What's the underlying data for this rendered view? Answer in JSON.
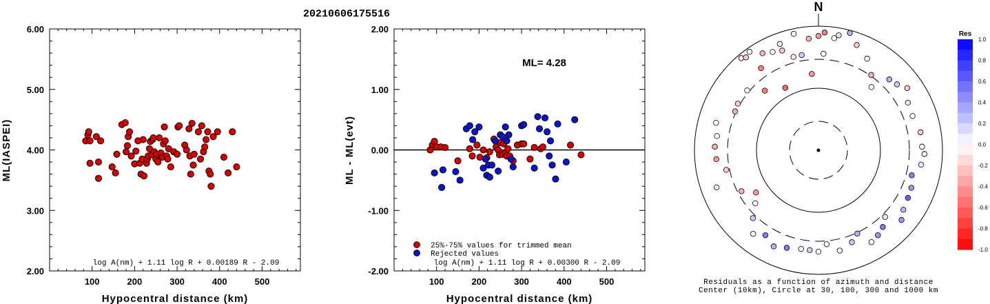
{
  "colors": {
    "red": "#d40000",
    "blue": "#0a14c8",
    "frame": "#000000"
  },
  "figure_title": "20210606175516",
  "chart_data": [
    {
      "type": "scatter",
      "id": "left",
      "xlabel": "Hypocentral distance (km)",
      "ylabel": "ML(IASPEI)",
      "xlim": [
        0,
        590
      ],
      "ylim": [
        2.0,
        6.0
      ],
      "xticks": [
        100,
        200,
        300,
        400,
        500
      ],
      "yticks": [
        "2.00",
        "3.00",
        "4.00",
        "5.00",
        "6.00"
      ],
      "formula": "log A(nm) + 1.11 log R + 0.00189 R - 2.09",
      "series": [
        {
          "color": "red",
          "points": [
            [
              85,
              4.15
            ],
            [
              90,
              4.25
            ],
            [
              92,
              4.3
            ],
            [
              95,
              3.78
            ],
            [
              95,
              4.15
            ],
            [
              110,
              4.22
            ],
            [
              115,
              3.53
            ],
            [
              115,
              3.8
            ],
            [
              120,
              4.15
            ],
            [
              147,
              3.72
            ],
            [
              155,
              3.62
            ],
            [
              158,
              3.93
            ],
            [
              170,
              4.42
            ],
            [
              178,
              4.45
            ],
            [
              180,
              3.97
            ],
            [
              183,
              4.07
            ],
            [
              185,
              4.22
            ],
            [
              188,
              4.3
            ],
            [
              192,
              3.9
            ],
            [
              200,
              3.77
            ],
            [
              203,
              3.98
            ],
            [
              208,
              4.15
            ],
            [
              212,
              3.78
            ],
            [
              215,
              3.6
            ],
            [
              218,
              3.85
            ],
            [
              220,
              4.17
            ],
            [
              222,
              3.57
            ],
            [
              228,
              3.78
            ],
            [
              230,
              3.85
            ],
            [
              232,
              3.9
            ],
            [
              235,
              4.02
            ],
            [
              237,
              4.14
            ],
            [
              240,
              3.92
            ],
            [
              242,
              4.17
            ],
            [
              244,
              4.2
            ],
            [
              246,
              3.97
            ],
            [
              250,
              3.85
            ],
            [
              252,
              3.93
            ],
            [
              255,
              3.8
            ],
            [
              258,
              4.2
            ],
            [
              262,
              3.95
            ],
            [
              265,
              3.88
            ],
            [
              268,
              4.1
            ],
            [
              270,
              4.38
            ],
            [
              272,
              4.15
            ],
            [
              275,
              3.9
            ],
            [
              278,
              3.85
            ],
            [
              280,
              4.02
            ],
            [
              285,
              3.72
            ],
            [
              292,
              3.97
            ],
            [
              300,
              3.93
            ],
            [
              302,
              4.38
            ],
            [
              305,
              4.4
            ],
            [
              318,
              4.08
            ],
            [
              322,
              4.0
            ],
            [
              328,
              4.35
            ],
            [
              330,
              3.9
            ],
            [
              332,
              3.6
            ],
            [
              335,
              4.44
            ],
            [
              338,
              3.75
            ],
            [
              340,
              3.93
            ],
            [
              350,
              4.3
            ],
            [
              355,
              3.85
            ],
            [
              358,
              4.4
            ],
            [
              362,
              3.97
            ],
            [
              365,
              4.05
            ],
            [
              368,
              4.17
            ],
            [
              372,
              4.3
            ],
            [
              375,
              3.65
            ],
            [
              378,
              3.6
            ],
            [
              380,
              3.4
            ],
            [
              385,
              4.22
            ],
            [
              395,
              4.3
            ],
            [
              410,
              3.88
            ],
            [
              420,
              3.62
            ],
            [
              430,
              4.3
            ],
            [
              440,
              3.72
            ]
          ]
        }
      ]
    },
    {
      "type": "scatter",
      "id": "middle",
      "xlabel": "Hypocentral distance (km)",
      "ylabel": "ML - ML(evt)",
      "xlim": [
        0,
        590
      ],
      "ylim": [
        -2.0,
        2.0
      ],
      "xticks": [
        100,
        200,
        300,
        400,
        500
      ],
      "yticks": [
        "-2.00",
        "-1.00",
        "0.00",
        "1.00",
        "2.00"
      ],
      "reference_line": 0,
      "annotation": "ML= 4.28",
      "legend": [
        "25%-75% values for trimmed mean",
        "Rejected values"
      ],
      "formula": "log A(nm) + 1.11 log R + 0.00300 R - 2.09",
      "series": [
        {
          "color": "red",
          "name": "25%-75% values for trimmed mean",
          "points": [
            [
              85,
              0.0
            ],
            [
              90,
              0.08
            ],
            [
              95,
              0.14
            ],
            [
              100,
              0.05
            ],
            [
              110,
              0.05
            ],
            [
              120,
              0.04
            ],
            [
              150,
              -0.18
            ],
            [
              178,
              0.02
            ],
            [
              184,
              -0.1
            ],
            [
              195,
              0.08
            ],
            [
              202,
              -0.12
            ],
            [
              210,
              0.0
            ],
            [
              218,
              -0.13
            ],
            [
              225,
              -0.03
            ],
            [
              235,
              0.18
            ],
            [
              240,
              0.05
            ],
            [
              245,
              0.0
            ],
            [
              248,
              -0.08
            ],
            [
              250,
              0.12
            ],
            [
              255,
              -0.07
            ],
            [
              258,
              0.1
            ],
            [
              262,
              -0.05
            ],
            [
              265,
              -0.1
            ],
            [
              268,
              0.02
            ],
            [
              272,
              -0.1
            ],
            [
              280,
              -0.18
            ],
            [
              290,
              0.08
            ],
            [
              300,
              0.1
            ],
            [
              305,
              0.1
            ],
            [
              320,
              -0.15
            ],
            [
              330,
              0.04
            ],
            [
              345,
              0.02
            ],
            [
              350,
              0.05
            ],
            [
              415,
              0.08
            ],
            [
              440,
              -0.08
            ]
          ]
        },
        {
          "color": "blue",
          "name": "Rejected values",
          "points": [
            [
              95,
              -0.38
            ],
            [
              112,
              -0.62
            ],
            [
              115,
              -0.33
            ],
            [
              145,
              -0.36
            ],
            [
              155,
              -0.5
            ],
            [
              170,
              0.35
            ],
            [
              178,
              0.4
            ],
            [
              185,
              0.17
            ],
            [
              190,
              0.3
            ],
            [
              200,
              0.38
            ],
            [
              210,
              -0.3
            ],
            [
              215,
              -0.15
            ],
            [
              218,
              -0.42
            ],
            [
              222,
              -0.25
            ],
            [
              225,
              -0.45
            ],
            [
              230,
              -0.25
            ],
            [
              238,
              0.15
            ],
            [
              245,
              -0.35
            ],
            [
              250,
              0.25
            ],
            [
              255,
              0.22
            ],
            [
              262,
              0.38
            ],
            [
              265,
              0.15
            ],
            [
              270,
              0.25
            ],
            [
              275,
              -0.15
            ],
            [
              280,
              -0.28
            ],
            [
              300,
              0.4
            ],
            [
              305,
              0.42
            ],
            [
              330,
              -0.3
            ],
            [
              338,
              0.55
            ],
            [
              342,
              0.35
            ],
            [
              355,
              0.53
            ],
            [
              360,
              0.3
            ],
            [
              365,
              -0.1
            ],
            [
              368,
              0.15
            ],
            [
              372,
              -0.25
            ],
            [
              380,
              -0.48
            ],
            [
              385,
              0.43
            ],
            [
              405,
              -0.2
            ],
            [
              425,
              0.5
            ]
          ]
        }
      ]
    },
    {
      "type": "scatter",
      "id": "polar",
      "north_label": "N",
      "caption": [
        "Residuals as a function of azimuth and distance",
        "Center (10km), Circle at 30, 100, 300 and 1000 km"
      ],
      "colorbar": {
        "title": "Res",
        "ticks": [
          "1.0",
          "0.8",
          "0.6",
          "0.4",
          "0.2",
          "0.0",
          "-0.2",
          "-0.4",
          "-0.6",
          "-0.8",
          "-1.0"
        ],
        "range": [
          -1.0,
          1.0
        ]
      },
      "stations": [
        [
          -40,
          1.02,
          -0.1
        ],
        [
          -38,
          1.0,
          -0.2
        ],
        [
          -35,
          1.02,
          0.0
        ],
        [
          -30,
          0.95,
          -0.3
        ],
        [
          -25,
          0.92,
          0.0
        ],
        [
          -20,
          0.96,
          -0.1
        ],
        [
          -12,
          1.01,
          0.0
        ],
        [
          -5,
          0.95,
          -0.3
        ],
        [
          0,
          0.97,
          -0.4
        ],
        [
          3,
          1.0,
          -0.5
        ],
        [
          8,
          0.96,
          0.0
        ],
        [
          10,
          0.99,
          0.1
        ],
        [
          15,
          1.03,
          0.3
        ],
        [
          20,
          0.95,
          -0.2
        ],
        [
          28,
          0.88,
          0.0
        ],
        [
          35,
          0.78,
          -0.3
        ],
        [
          40,
          0.7,
          0.0
        ],
        [
          45,
          0.85,
          0.3
        ],
        [
          50,
          0.87,
          0.2
        ],
        [
          55,
          0.92,
          -0.2
        ],
        [
          62,
          0.86,
          -0.1
        ],
        [
          70,
          0.85,
          0.0
        ],
        [
          80,
          0.88,
          -0.2
        ],
        [
          88,
          0.88,
          0.0
        ],
        [
          92,
          0.9,
          -0.1
        ],
        [
          98,
          0.88,
          -0.1
        ],
        [
          105,
          0.82,
          0.5
        ],
        [
          112,
          0.85,
          0.4
        ],
        [
          118,
          0.86,
          0.6
        ],
        [
          125,
          0.88,
          0.3
        ],
        [
          130,
          0.92,
          0.4
        ],
        [
          135,
          0.8,
          -0.1
        ],
        [
          140,
          0.85,
          0.5
        ],
        [
          145,
          0.88,
          0.4
        ],
        [
          150,
          0.9,
          0.0
        ],
        [
          155,
          0.78,
          0.3
        ],
        [
          160,
          0.83,
          0.2
        ],
        [
          168,
          0.87,
          0.0
        ],
        [
          175,
          0.8,
          0.0
        ],
        [
          180,
          0.86,
          0.0
        ],
        [
          185,
          0.85,
          0.2
        ],
        [
          190,
          0.85,
          0.0
        ],
        [
          198,
          0.87,
          0.5
        ],
        [
          205,
          0.9,
          0.3
        ],
        [
          212,
          0.85,
          0.5
        ],
        [
          218,
          0.9,
          0.0
        ],
        [
          224,
          0.8,
          0.2
        ],
        [
          230,
          0.7,
          0.0
        ],
        [
          236,
          0.64,
          -0.4
        ],
        [
          242,
          0.74,
          -0.3
        ],
        [
          250,
          0.92,
          -0.1
        ],
        [
          258,
          0.8,
          -0.2
        ],
        [
          265,
          0.87,
          -0.4
        ],
        [
          272,
          0.88,
          -0.3
        ],
        [
          278,
          0.87,
          0.0
        ],
        [
          285,
          0.9,
          0.0
        ],
        [
          295,
          0.78,
          -0.3
        ],
        [
          300,
          0.79,
          -0.2
        ],
        [
          310,
          0.79,
          0.0
        ],
        [
          318,
          0.68,
          -0.5
        ],
        [
          325,
          0.85,
          -0.5
        ],
        [
          332,
          0.6,
          -0.6
        ],
        [
          340,
          0.9,
          -0.2
        ],
        [
          345,
          0.82,
          -0.1
        ],
        [
          350,
          0.82,
          0.2
        ],
        [
          355,
          0.65,
          -0.4
        ],
        [
          3,
          0.82,
          0.0
        ]
      ]
    }
  ]
}
